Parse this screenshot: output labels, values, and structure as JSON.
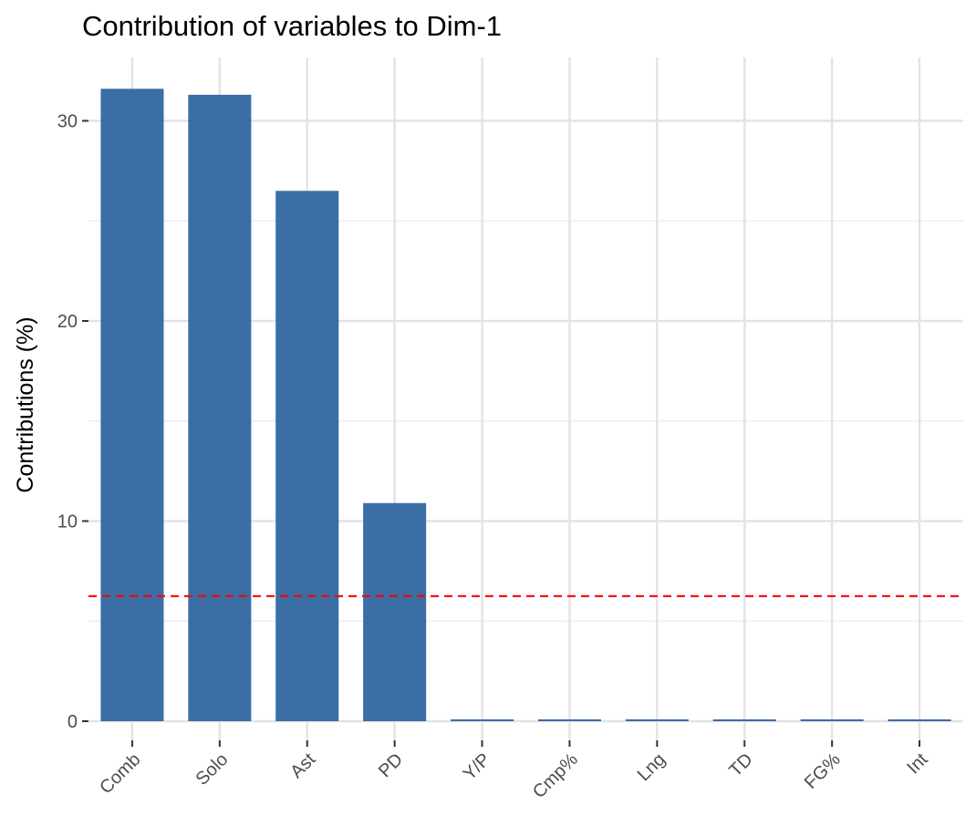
{
  "chart_data": {
    "type": "bar",
    "title": "Contribution of variables to Dim-1",
    "xlabel": "",
    "ylabel": "Contributions (%)",
    "categories": [
      "Comb",
      "Solo",
      "Ast",
      "PD",
      "Y/P",
      "Cmp%",
      "Lng",
      "TD",
      "FG%",
      "Int"
    ],
    "values": [
      31.6,
      31.3,
      26.5,
      10.9,
      0,
      0,
      0,
      0,
      0,
      0
    ],
    "ylim": [
      0,
      33
    ],
    "yticks": [
      0,
      10,
      20,
      30
    ],
    "ytick_labels": [
      "0",
      "10",
      "20",
      "30"
    ],
    "reference_line": {
      "value": 6.25,
      "style": "dashed",
      "color": "#ff0000"
    },
    "bar_color": "#3a6ea5",
    "grid": true,
    "legend": "none"
  }
}
